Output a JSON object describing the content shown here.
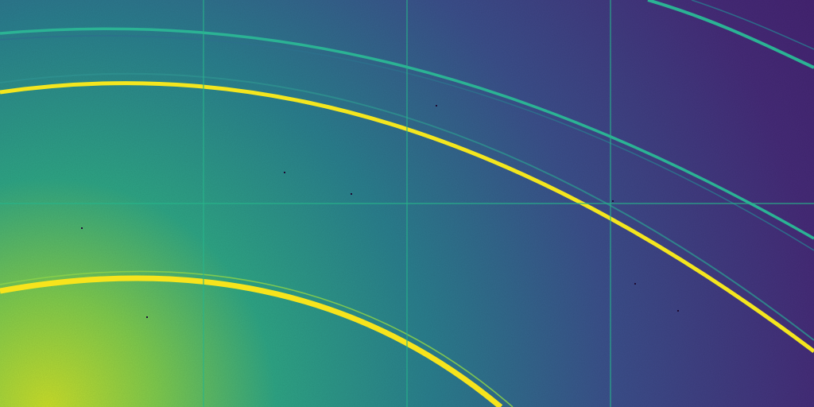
{
  "image": {
    "colormap": "viridis",
    "colors": {
      "background_dark": "#44206f",
      "background_mid": "#3c4c8a",
      "background_teal": "#2a7f8e",
      "hot_center": "#c8e020",
      "ring_bright": "#f4e61e",
      "ring_dim": "#2bb394",
      "grid_line": "#27b58a"
    },
    "detector_panels": {
      "rows": 2,
      "columns": 4
    }
  }
}
